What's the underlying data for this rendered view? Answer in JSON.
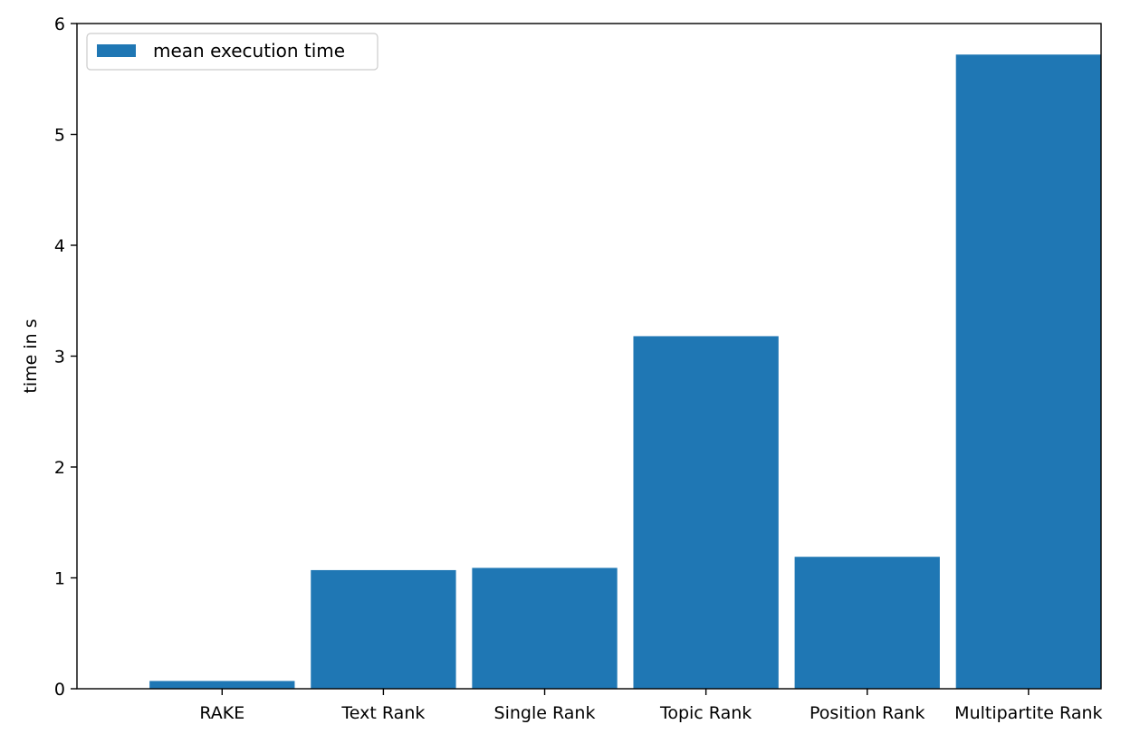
{
  "chart_data": {
    "type": "bar",
    "title": "",
    "xlabel": "",
    "ylabel": "time in s",
    "categories": [
      "RAKE",
      "Text Rank",
      "Single Rank",
      "Topic Rank",
      "Position Rank",
      "Multipartite Rank"
    ],
    "series": [
      {
        "name": "mean execution time",
        "values": [
          0.07,
          1.07,
          1.09,
          3.18,
          1.19,
          5.72
        ],
        "color": "#1f77b4"
      }
    ],
    "ylim": [
      0,
      6
    ],
    "yticks": [
      0,
      1,
      2,
      3,
      4,
      5,
      6
    ],
    "grid": false,
    "legend_position": "top-left"
  }
}
